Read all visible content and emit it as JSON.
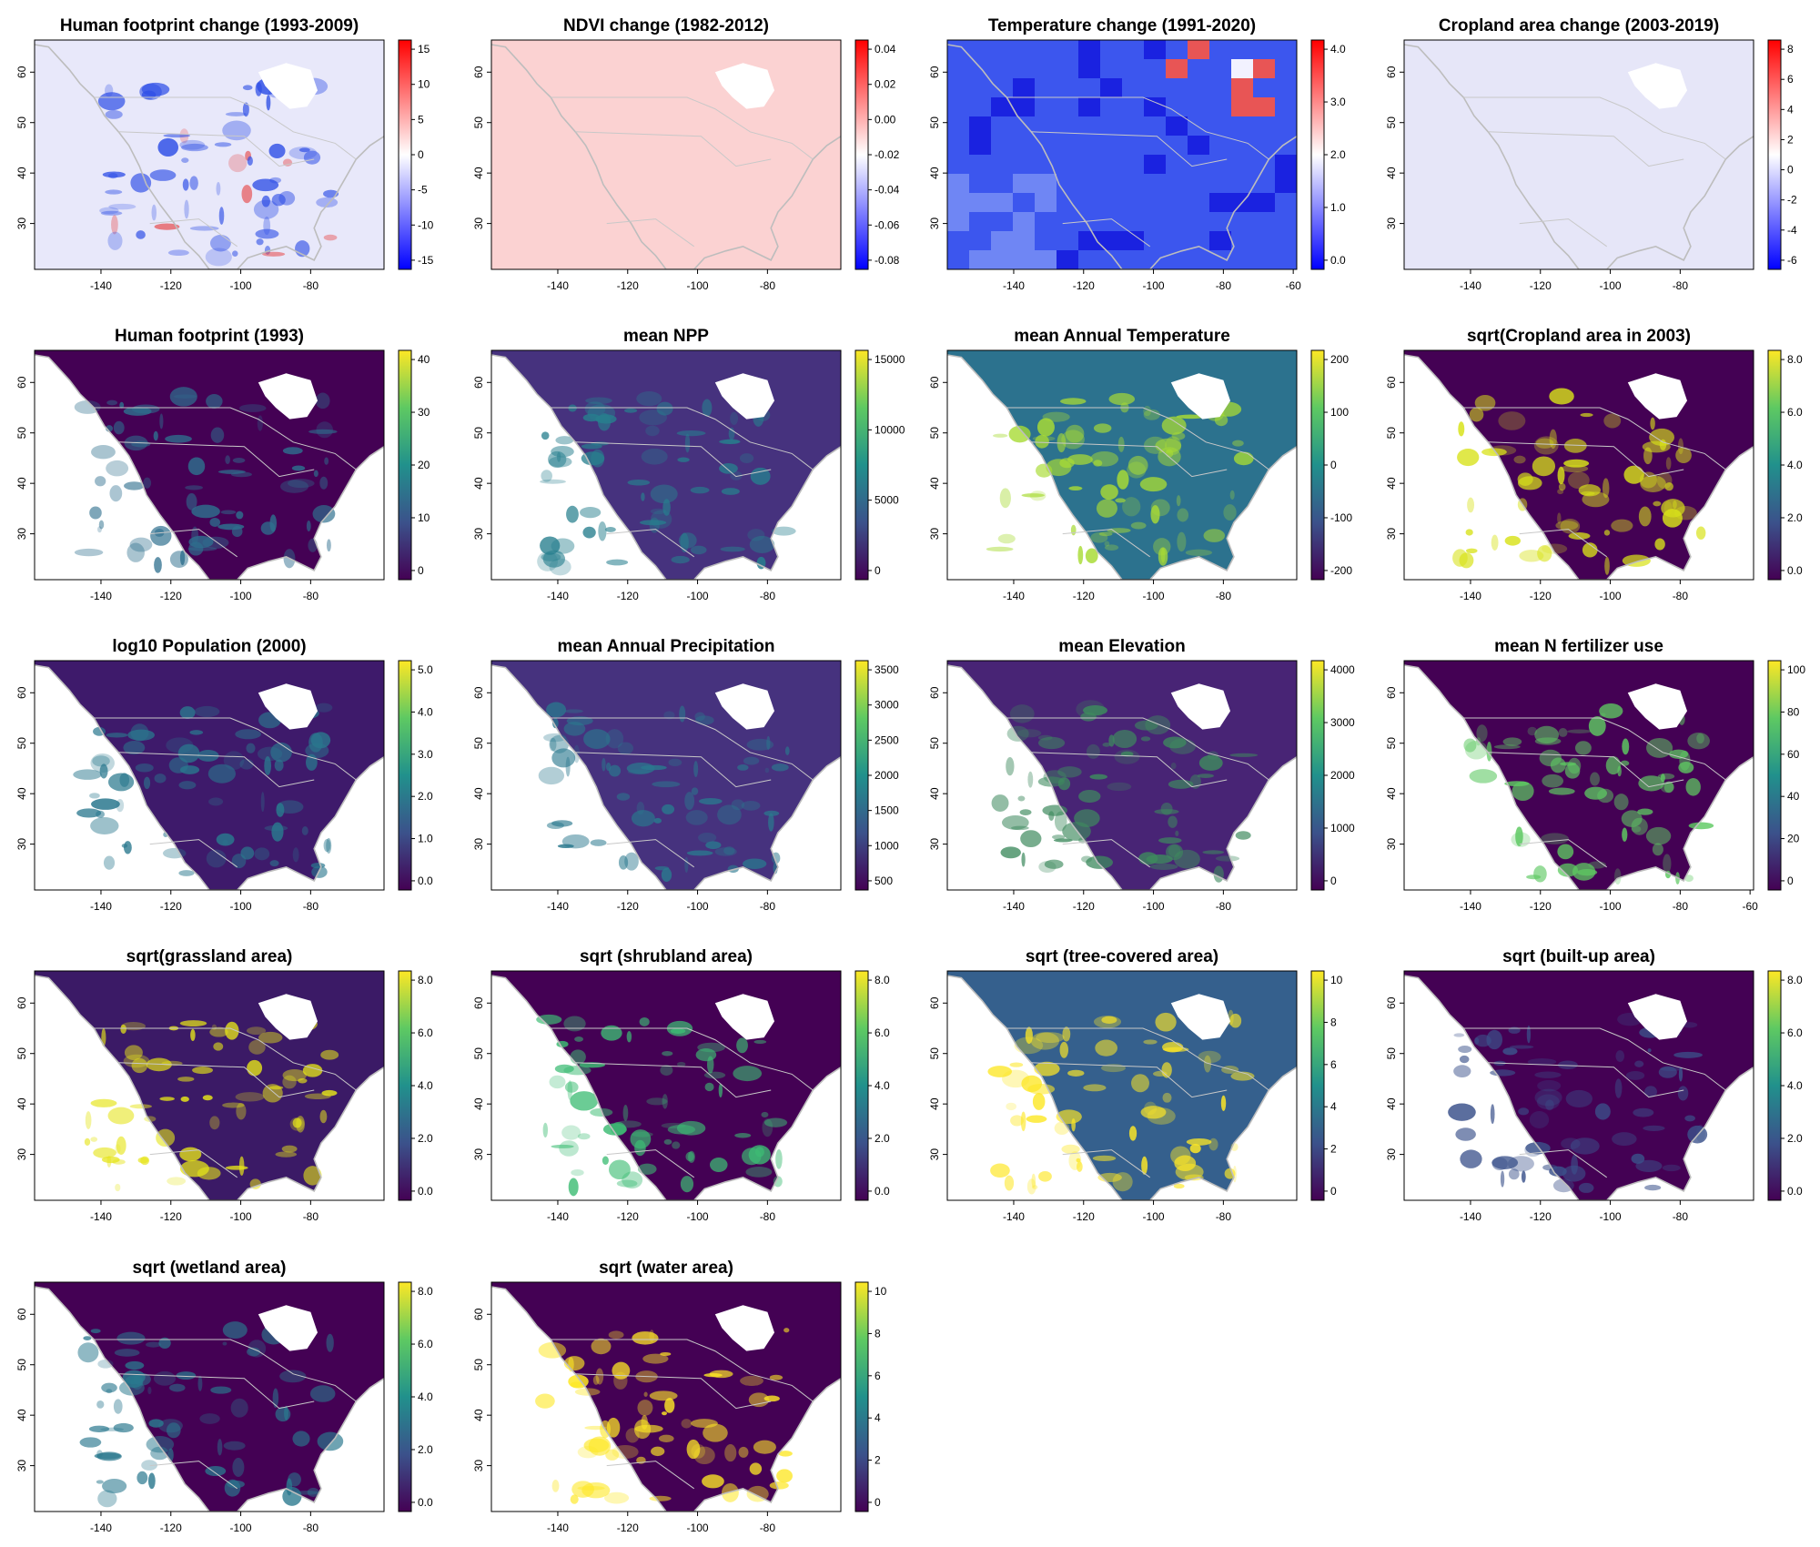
{
  "figure": {
    "panels": [
      {
        "id": "hfp-change",
        "title": "Human footprint change (1993-2009)",
        "type": "diverging",
        "bg": "#e8e8fa",
        "accent": "#3050e6",
        "accent2": "#e64040",
        "colorbar": {
          "colors": [
            "#0000ff",
            "#ffffff",
            "#ff0000"
          ],
          "ticks": [
            "15",
            "10",
            "5",
            "0",
            "-5",
            "-10",
            "-15"
          ]
        },
        "xticks": [
          "-140",
          "-120",
          "-100",
          "-80"
        ],
        "yticks": [
          "60",
          "50",
          "40",
          "30"
        ]
      },
      {
        "id": "ndvi-change",
        "title": "NDVI change (1982-2012)",
        "type": "flat",
        "bg": "#fbd2d2",
        "accent": "#f4b4b4",
        "colorbar": {
          "colors": [
            "#0000ff",
            "#ffffff",
            "#ff0000"
          ],
          "ticks": [
            "0.04",
            "0.02",
            "0.00",
            "-0.02",
            "-0.04",
            "-0.06",
            "-0.08"
          ]
        },
        "xticks": [
          "-140",
          "-120",
          "-100",
          "-80"
        ],
        "yticks": [
          "60",
          "50",
          "40",
          "30"
        ]
      },
      {
        "id": "temp-change",
        "title": "Temperature change (1991-2020)",
        "type": "coarse",
        "bg": "#3c56ee",
        "accent": "#1a22e0",
        "accent2": "#e85555",
        "colorbar": {
          "colors": [
            "#0000ff",
            "#ffffff",
            "#ff0000"
          ],
          "ticks": [
            "4.0",
            "3.0",
            "2.0",
            "1.0",
            "0.0"
          ]
        },
        "xticks": [
          "-140",
          "-120",
          "-100",
          "-80",
          "-60"
        ],
        "yticks": [
          "60",
          "50",
          "40",
          "30"
        ]
      },
      {
        "id": "crop-change",
        "title": "Cropland area change (2003-2019)",
        "type": "flat",
        "bg": "#e6e6f8",
        "accent": "#b8b8ec",
        "colorbar": {
          "colors": [
            "#0000ff",
            "#ffffff",
            "#ff0000"
          ],
          "ticks": [
            "8",
            "6",
            "4",
            "2",
            "0",
            "-2",
            "-4",
            "-6"
          ]
        },
        "xticks": [
          "-140",
          "-120",
          "-100",
          "-80"
        ],
        "yticks": [
          "60",
          "50",
          "40",
          "30"
        ]
      },
      {
        "id": "hfp-1993",
        "title": "Human footprint (1993)",
        "type": "viridis",
        "bg": "#440154",
        "accent": "#2e6f8e",
        "colorbar": {
          "colors": [
            "#440154",
            "#3b528b",
            "#21918c",
            "#5ec962",
            "#fde725"
          ],
          "ticks": [
            "40",
            "30",
            "20",
            "10",
            "0"
          ]
        },
        "xticks": [
          "-140",
          "-120",
          "-100",
          "-80"
        ],
        "yticks": [
          "60",
          "50",
          "40",
          "30"
        ]
      },
      {
        "id": "mean-npp",
        "title": "mean NPP",
        "type": "viridis",
        "bg": "#46327e",
        "accent": "#277f8e",
        "colorbar": {
          "colors": [
            "#440154",
            "#3b528b",
            "#21918c",
            "#5ec962",
            "#fde725"
          ],
          "ticks": [
            "15000",
            "10000",
            "5000",
            "0"
          ]
        },
        "xticks": [
          "-140",
          "-120",
          "-100",
          "-80"
        ],
        "yticks": [
          "60",
          "50",
          "40",
          "30"
        ]
      },
      {
        "id": "mean-temp",
        "title": "mean Annual Temperature",
        "type": "viridis",
        "bg": "#2c728e",
        "accent": "#a8db34",
        "colorbar": {
          "colors": [
            "#440154",
            "#3b528b",
            "#21918c",
            "#5ec962",
            "#fde725"
          ],
          "ticks": [
            "200",
            "100",
            "0",
            "-100",
            "-200"
          ]
        },
        "xticks": [
          "-140",
          "-120",
          "-100",
          "-80"
        ],
        "yticks": [
          "60",
          "50",
          "40",
          "30"
        ]
      },
      {
        "id": "crop-2003",
        "title": "sqrt(Cropland area in 2003)",
        "type": "viridis",
        "bg": "#440154",
        "accent": "#d8e219",
        "colorbar": {
          "colors": [
            "#440154",
            "#3b528b",
            "#21918c",
            "#5ec962",
            "#fde725"
          ],
          "ticks": [
            "8.0",
            "6.0",
            "4.0",
            "2.0",
            "0.0"
          ]
        },
        "xticks": [
          "-140",
          "-120",
          "-100",
          "-80"
        ],
        "yticks": [
          "60",
          "50",
          "40",
          "30"
        ]
      },
      {
        "id": "pop-2000",
        "title": "log10 Population (2000)",
        "type": "viridis",
        "bg": "#3e1a6b",
        "accent": "#2a788e",
        "colorbar": {
          "colors": [
            "#440154",
            "#3b528b",
            "#21918c",
            "#5ec962",
            "#fde725"
          ],
          "ticks": [
            "5.0",
            "4.0",
            "3.0",
            "2.0",
            "1.0",
            "0.0"
          ]
        },
        "xticks": [
          "-140",
          "-120",
          "-100",
          "-80"
        ],
        "yticks": [
          "60",
          "50",
          "40",
          "30"
        ]
      },
      {
        "id": "mean-precip",
        "title": "mean Annual Precipitation",
        "type": "viridis",
        "bg": "#46327e",
        "accent": "#2a788e",
        "colorbar": {
          "colors": [
            "#440154",
            "#3b528b",
            "#21918c",
            "#5ec962",
            "#fde725"
          ],
          "ticks": [
            "3500",
            "3000",
            "2500",
            "2000",
            "1500",
            "1000",
            "500"
          ]
        },
        "xticks": [
          "-140",
          "-120",
          "-100",
          "-80"
        ],
        "yticks": [
          "60",
          "50",
          "40",
          "30"
        ]
      },
      {
        "id": "mean-elev",
        "title": "mean Elevation",
        "type": "viridis",
        "bg": "#482475",
        "accent": "#3e8a5e",
        "colorbar": {
          "colors": [
            "#440154",
            "#3b528b",
            "#21918c",
            "#5ec962",
            "#fde725"
          ],
          "ticks": [
            "4000",
            "3000",
            "2000",
            "1000",
            "0"
          ]
        },
        "xticks": [
          "-140",
          "-120",
          "-100",
          "-80"
        ],
        "yticks": [
          "60",
          "50",
          "40",
          "30"
        ]
      },
      {
        "id": "n-fert",
        "title": "mean N fertilizer use",
        "type": "viridis",
        "bg": "#440154",
        "accent": "#5ec962",
        "colorbar": {
          "colors": [
            "#440154",
            "#3b528b",
            "#21918c",
            "#5ec962",
            "#fde725"
          ],
          "ticks": [
            "100",
            "80",
            "60",
            "40",
            "20",
            "0"
          ]
        },
        "xticks": [
          "-140",
          "-120",
          "-100",
          "-80",
          "-60"
        ],
        "yticks": [
          "60",
          "50",
          "40",
          "30"
        ]
      },
      {
        "id": "grassland",
        "title": "sqrt(grassland area)",
        "type": "viridis",
        "bg": "#3b1a66",
        "accent": "#e5e419",
        "colorbar": {
          "colors": [
            "#440154",
            "#3b528b",
            "#21918c",
            "#5ec962",
            "#fde725"
          ],
          "ticks": [
            "8.0",
            "6.0",
            "4.0",
            "2.0",
            "0.0"
          ]
        },
        "xticks": [
          "-140",
          "-120",
          "-100",
          "-80"
        ],
        "yticks": [
          "60",
          "50",
          "40",
          "30"
        ]
      },
      {
        "id": "shrubland",
        "title": "sqrt (shrubland area)",
        "type": "viridis",
        "bg": "#440154",
        "accent": "#3dbc74",
        "colorbar": {
          "colors": [
            "#440154",
            "#3b528b",
            "#21918c",
            "#5ec962",
            "#fde725"
          ],
          "ticks": [
            "8.0",
            "6.0",
            "4.0",
            "2.0",
            "0.0"
          ]
        },
        "xticks": [
          "-140",
          "-120",
          "-100",
          "-80"
        ],
        "yticks": [
          "60",
          "50",
          "40",
          "30"
        ]
      },
      {
        "id": "tree",
        "title": "sqrt (tree-covered area)",
        "type": "viridis",
        "bg": "#35608d",
        "accent": "#fde725",
        "colorbar": {
          "colors": [
            "#440154",
            "#3b528b",
            "#21918c",
            "#5ec962",
            "#fde725"
          ],
          "ticks": [
            "10",
            "8",
            "6",
            "4",
            "2",
            "0"
          ]
        },
        "xticks": [
          "-140",
          "-120",
          "-100",
          "-80"
        ],
        "yticks": [
          "60",
          "50",
          "40",
          "30"
        ]
      },
      {
        "id": "builtup",
        "title": "sqrt (built-up area)",
        "type": "viridis",
        "bg": "#440154",
        "accent": "#3b528b",
        "colorbar": {
          "colors": [
            "#440154",
            "#3b528b",
            "#21918c",
            "#5ec962",
            "#fde725"
          ],
          "ticks": [
            "8.0",
            "6.0",
            "4.0",
            "2.0",
            "0.0"
          ]
        },
        "xticks": [
          "-140",
          "-120",
          "-100",
          "-80"
        ],
        "yticks": [
          "60",
          "50",
          "40",
          "30"
        ]
      },
      {
        "id": "wetland",
        "title": "sqrt (wetland area)",
        "type": "viridis",
        "bg": "#440154",
        "accent": "#2a788e",
        "colorbar": {
          "colors": [
            "#440154",
            "#3b528b",
            "#21918c",
            "#5ec962",
            "#fde725"
          ],
          "ticks": [
            "8.0",
            "6.0",
            "4.0",
            "2.0",
            "0.0"
          ]
        },
        "xticks": [
          "-140",
          "-120",
          "-100",
          "-80"
        ],
        "yticks": [
          "60",
          "50",
          "40",
          "30"
        ]
      },
      {
        "id": "water",
        "title": "sqrt (water area)",
        "type": "viridis",
        "bg": "#440154",
        "accent": "#fde725",
        "colorbar": {
          "colors": [
            "#440154",
            "#3b528b",
            "#21918c",
            "#5ec962",
            "#fde725"
          ],
          "ticks": [
            "10",
            "8",
            "6",
            "4",
            "2",
            "0"
          ]
        },
        "xticks": [
          "-140",
          "-120",
          "-100",
          "-80"
        ],
        "yticks": [
          "60",
          "50",
          "40",
          "30"
        ]
      }
    ]
  }
}
